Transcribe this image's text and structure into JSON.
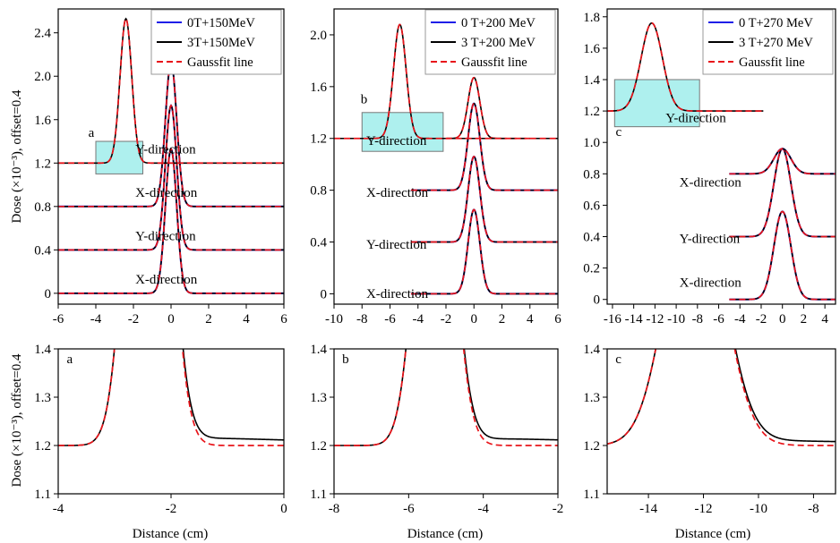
{
  "figure": {
    "y_axis_label": "Dose (×10⁻³), offset=0.4",
    "x_axis_label": "Distance (cm)"
  },
  "chart_data": [
    {
      "type": "line",
      "panel": "top-left",
      "x_range": [
        -6,
        6
      ],
      "y_range": [
        -0.1,
        2.62
      ],
      "x_ticks": [
        -6,
        -4,
        -2,
        0,
        2,
        4,
        6
      ],
      "y_ticks": [
        0,
        0.4,
        0.8,
        1.2,
        1.6,
        2.0,
        2.4
      ],
      "x_tick_labels": [
        "-6",
        "-4",
        "-2",
        "0",
        "2",
        "4",
        "6"
      ],
      "y_tick_labels": [
        "0",
        "0.4",
        "0.8",
        "1.2",
        "1.6",
        "2.0",
        "2.4"
      ],
      "legend": [
        "0T+150MeV",
        "3T+150MeV",
        "Gaussfit line"
      ],
      "legend_position": "top-right",
      "curves": [
        {
          "center": 0,
          "sigma": 0.3,
          "baseline": 0,
          "peak": 1.33,
          "label": "X-direction",
          "label_pos": [
            -1.9,
            0.09
          ]
        },
        {
          "center": 0,
          "sigma": 0.3,
          "baseline": 0.4,
          "peak": 1.33,
          "label": "Y-direction",
          "label_pos": [
            -1.9,
            0.49
          ]
        },
        {
          "center": 0,
          "sigma": 0.3,
          "baseline": 0.8,
          "peak": 1.33,
          "label": "X-direction",
          "label_pos": [
            -1.9,
            0.89
          ]
        },
        {
          "center": -2.4,
          "sigma": 0.31,
          "baseline": 1.2,
          "peak": 1.33,
          "label": "Y-direction",
          "label_pos": [
            -1.9,
            1.29
          ],
          "has_0T": false
        }
      ],
      "highlight": {
        "x": [
          -4,
          -1.5
        ],
        "y": [
          1.1,
          1.4
        ],
        "label": "a",
        "label_pos": [
          -4.4,
          1.44
        ]
      }
    },
    {
      "type": "line",
      "panel": "top-middle",
      "x_range": [
        -10,
        6
      ],
      "y_range": [
        -0.08,
        2.2
      ],
      "x_ticks": [
        -10,
        -8,
        -6,
        -4,
        -2,
        0,
        2,
        4,
        6
      ],
      "y_ticks": [
        0,
        0.4,
        0.8,
        1.2,
        1.6,
        2.0
      ],
      "x_tick_labels": [
        "-10",
        "-8",
        "-6",
        "-4",
        "-2",
        "0",
        "2",
        "4",
        "6"
      ],
      "y_tick_labels": [
        "0",
        "0.4",
        "0.8",
        "1.2",
        "1.6",
        "2.0"
      ],
      "legend": [
        "0 T+200 MeV",
        "3 T+200 MeV",
        "Gaussfit line"
      ],
      "legend_position": "top-right",
      "curves": [
        {
          "center": 0,
          "sigma": 0.42,
          "baseline": 0,
          "peak": 0.65,
          "label": "X-direction",
          "label_pos": [
            -7.7,
            -0.03
          ],
          "x_start": -4.5
        },
        {
          "center": 0,
          "sigma": 0.42,
          "baseline": 0.4,
          "peak": 0.66,
          "label": "Y-direction",
          "label_pos": [
            -7.7,
            0.35
          ],
          "x_start": -4.5
        },
        {
          "center": 0,
          "sigma": 0.42,
          "baseline": 0.8,
          "peak": 0.67,
          "label": "X-direction",
          "label_pos": [
            -7.7,
            0.75
          ],
          "x_start": -4.5
        },
        {
          "center": 0,
          "sigma": 0.42,
          "baseline": 1.2,
          "peak": 0.47,
          "label": "Y-direction",
          "label_pos": [
            -7.7,
            1.15
          ],
          "x_start": -2,
          "has_0T": false
        },
        {
          "center": -5.3,
          "sigma": 0.45,
          "baseline": 1.2,
          "peak": 0.88,
          "label": "",
          "x_start": -10,
          "x_end": 4,
          "has_0T": false
        }
      ],
      "highlight": {
        "x": [
          -8,
          -2.2
        ],
        "y": [
          1.1,
          1.4
        ],
        "label": "b",
        "label_pos": [
          -8.1,
          1.47
        ]
      }
    },
    {
      "type": "line",
      "panel": "top-right",
      "x_range": [
        -16.5,
        5
      ],
      "y_range": [
        -0.03,
        1.85
      ],
      "x_ticks": [
        -16,
        -14,
        -12,
        -10,
        -8,
        -6,
        -4,
        -2,
        0,
        2,
        4
      ],
      "y_ticks": [
        0,
        0.2,
        0.4,
        0.6,
        0.8,
        1.0,
        1.2,
        1.4,
        1.6,
        1.8
      ],
      "x_tick_labels": [
        "-16",
        "-14",
        "-12",
        "-10",
        "-8",
        "-6",
        "-4",
        "-2",
        "0",
        "2",
        "4"
      ],
      "y_tick_labels": [
        "0",
        "0.2",
        "0.4",
        "0.6",
        "0.8",
        "1.0",
        "1.2",
        "1.4",
        "1.6",
        "1.8"
      ],
      "legend": [
        "0 T+270 MeV",
        "3 T+270 MeV",
        "Gaussfit line"
      ],
      "legend_position": "top-right",
      "curves": [
        {
          "center": 0,
          "sigma": 0.8,
          "baseline": 0,
          "peak": 0.56,
          "label": "X-direction",
          "label_pos": [
            -9.7,
            0.08
          ],
          "x_start": -5
        },
        {
          "center": 0,
          "sigma": 0.8,
          "baseline": 0.4,
          "peak": 0.56,
          "label": "Y-direction",
          "label_pos": [
            -9.7,
            0.36
          ],
          "x_start": -5
        },
        {
          "center": 0,
          "sigma": 0.8,
          "baseline": 0.8,
          "peak": 0.16,
          "label": "X-direction",
          "label_pos": [
            -9.7,
            0.72
          ],
          "x_start": -5
        },
        {
          "center": -12.3,
          "sigma": 1.0,
          "baseline": 1.2,
          "peak": 0.56,
          "label": "Y-direction",
          "label_pos": [
            -11,
            1.13
          ],
          "x_start": -16.5,
          "x_end": -1.8,
          "has_0T": false
        }
      ],
      "highlight": {
        "x": [
          -15.8,
          -7.8
        ],
        "y": [
          1.1,
          1.4
        ],
        "label": "c",
        "label_pos": [
          -15.7,
          1.04
        ]
      }
    },
    {
      "type": "line",
      "panel": "bottom-left",
      "x_range": [
        -4,
        0
      ],
      "y_range": [
        1.1,
        1.4
      ],
      "x_ticks": [
        -4,
        -2,
        0
      ],
      "y_ticks": [
        1.1,
        1.2,
        1.3,
        1.4
      ],
      "x_tick_labels": [
        "-4",
        "-2",
        "0"
      ],
      "y_tick_labels": [
        "1.1",
        "1.2",
        "1.3",
        "1.4"
      ],
      "label": "a",
      "label_pos": [
        -3.85,
        1.37
      ],
      "center": -2.4,
      "sigma": 0.31,
      "baseline": 1.2,
      "peak": 1.33,
      "tail": 0.024,
      "tail_scale": 0.55
    },
    {
      "type": "line",
      "panel": "bottom-middle",
      "x_range": [
        -8,
        -2
      ],
      "y_range": [
        1.1,
        1.4
      ],
      "x_ticks": [
        -8,
        -6,
        -4,
        -2
      ],
      "y_ticks": [
        1.1,
        1.2,
        1.3,
        1.4
      ],
      "x_tick_labels": [
        "-8",
        "-6",
        "-4",
        "-2"
      ],
      "y_tick_labels": [
        "1.1",
        "1.2",
        "1.3",
        "1.4"
      ],
      "label": "b",
      "label_pos": [
        -7.78,
        1.37
      ],
      "center": -5.3,
      "sigma": 0.45,
      "baseline": 1.2,
      "peak": 0.88,
      "tail": 0.022,
      "tail_scale": 0.9
    },
    {
      "type": "line",
      "panel": "bottom-right",
      "x_range": [
        -15.5,
        -7.2
      ],
      "y_range": [
        1.1,
        1.4
      ],
      "x_ticks": [
        -14,
        -12,
        -10,
        -8
      ],
      "y_ticks": [
        1.1,
        1.2,
        1.3,
        1.4
      ],
      "x_tick_labels": [
        "-14",
        "-12",
        "-10",
        "-8"
      ],
      "y_tick_labels": [
        "1.1",
        "1.2",
        "1.3",
        "1.4"
      ],
      "label": "c",
      "label_pos": [
        -15.2,
        1.37
      ],
      "center": -12.3,
      "sigma": 1.0,
      "baseline": 1.2,
      "peak": 0.56,
      "tail": 0.016,
      "tail_scale": 1.3
    }
  ],
  "colors": {
    "line_0T": "#1f1fe8",
    "line_3T": "#000000",
    "gaussfit": "#e8141a",
    "highlight_fill": "#aef0ee",
    "highlight_stroke": "#777777"
  }
}
